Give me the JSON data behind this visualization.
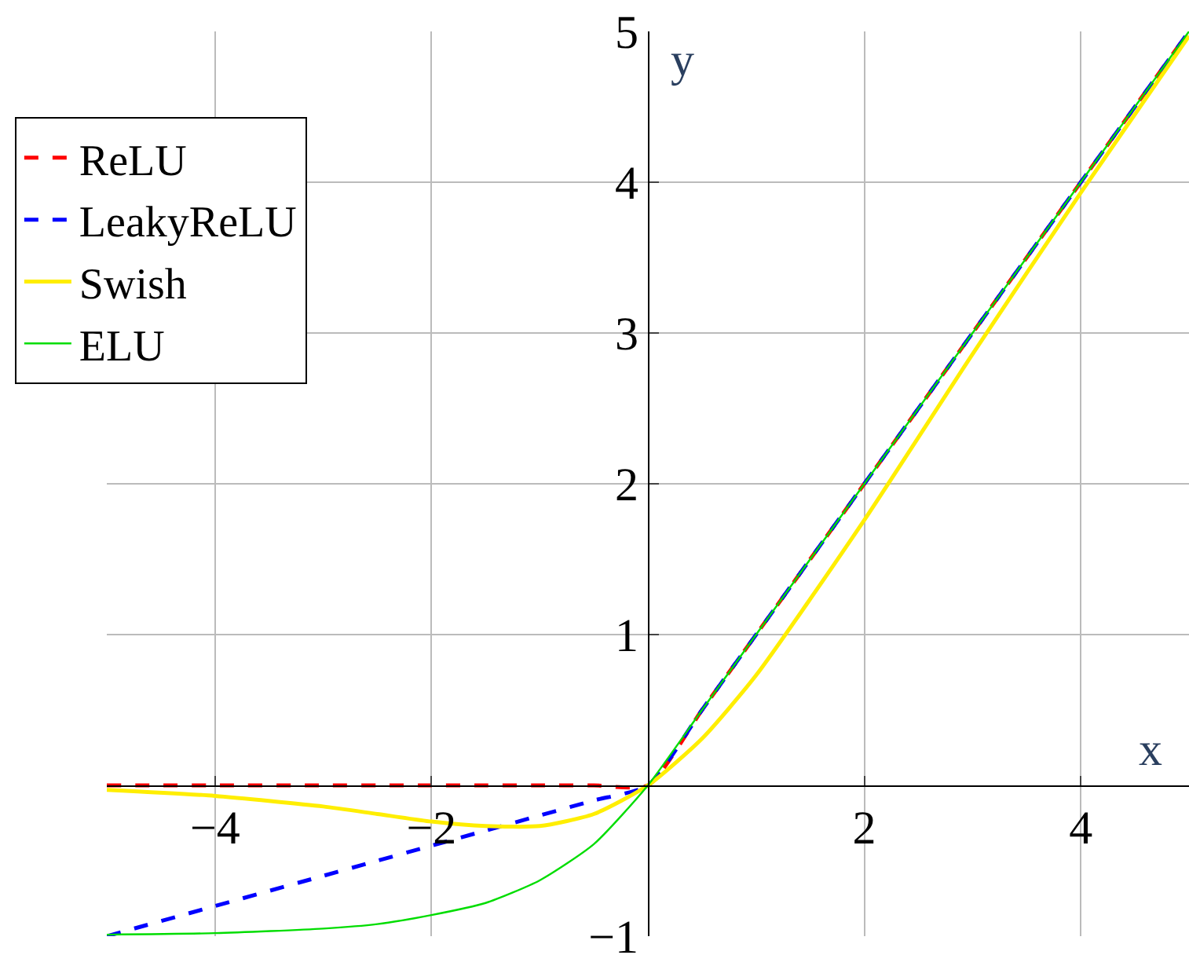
{
  "chart_data": {
    "type": "line",
    "xlabel": "x",
    "ylabel": "y",
    "xlim": [
      -5,
      5
    ],
    "ylim": [
      -1,
      5
    ],
    "xticks": [
      -4,
      -2,
      2,
      4
    ],
    "yticks": [
      -1,
      1,
      2,
      3,
      4,
      5
    ],
    "grid": true,
    "legend": "top left",
    "x": [
      -5,
      -4,
      -3,
      -2.5,
      -2,
      -1.5,
      -1,
      -0.5,
      0,
      0.5,
      1,
      2,
      3,
      4,
      5
    ],
    "series": [
      {
        "name": "ReLU",
        "color": "#ff0000",
        "line_style": "dashed",
        "values": [
          0,
          0,
          0,
          0,
          0,
          0,
          0,
          0,
          0,
          0.5,
          1,
          2,
          3,
          4,
          5
        ]
      },
      {
        "name": "LeakyReLU",
        "color": "#0000ff",
        "line_style": "dashed",
        "values": [
          -1,
          -0.8,
          -0.6,
          -0.5,
          -0.4,
          -0.3,
          -0.2,
          -0.1,
          0,
          0.5,
          1,
          2,
          3,
          4,
          5
        ]
      },
      {
        "name": "Swish",
        "color": "#ffee00",
        "line_style": "solid",
        "values": [
          -0.03,
          -0.07,
          -0.14,
          -0.19,
          -0.24,
          -0.27,
          -0.27,
          -0.19,
          0,
          0.31,
          0.73,
          1.76,
          2.86,
          3.93,
          4.97
        ]
      },
      {
        "name": "ELU",
        "color": "#00dd00",
        "line_style": "solid",
        "values": [
          -0.99,
          -0.98,
          -0.95,
          -0.92,
          -0.86,
          -0.78,
          -0.63,
          -0.39,
          0,
          0.5,
          1,
          2,
          3,
          4,
          5
        ]
      }
    ]
  }
}
